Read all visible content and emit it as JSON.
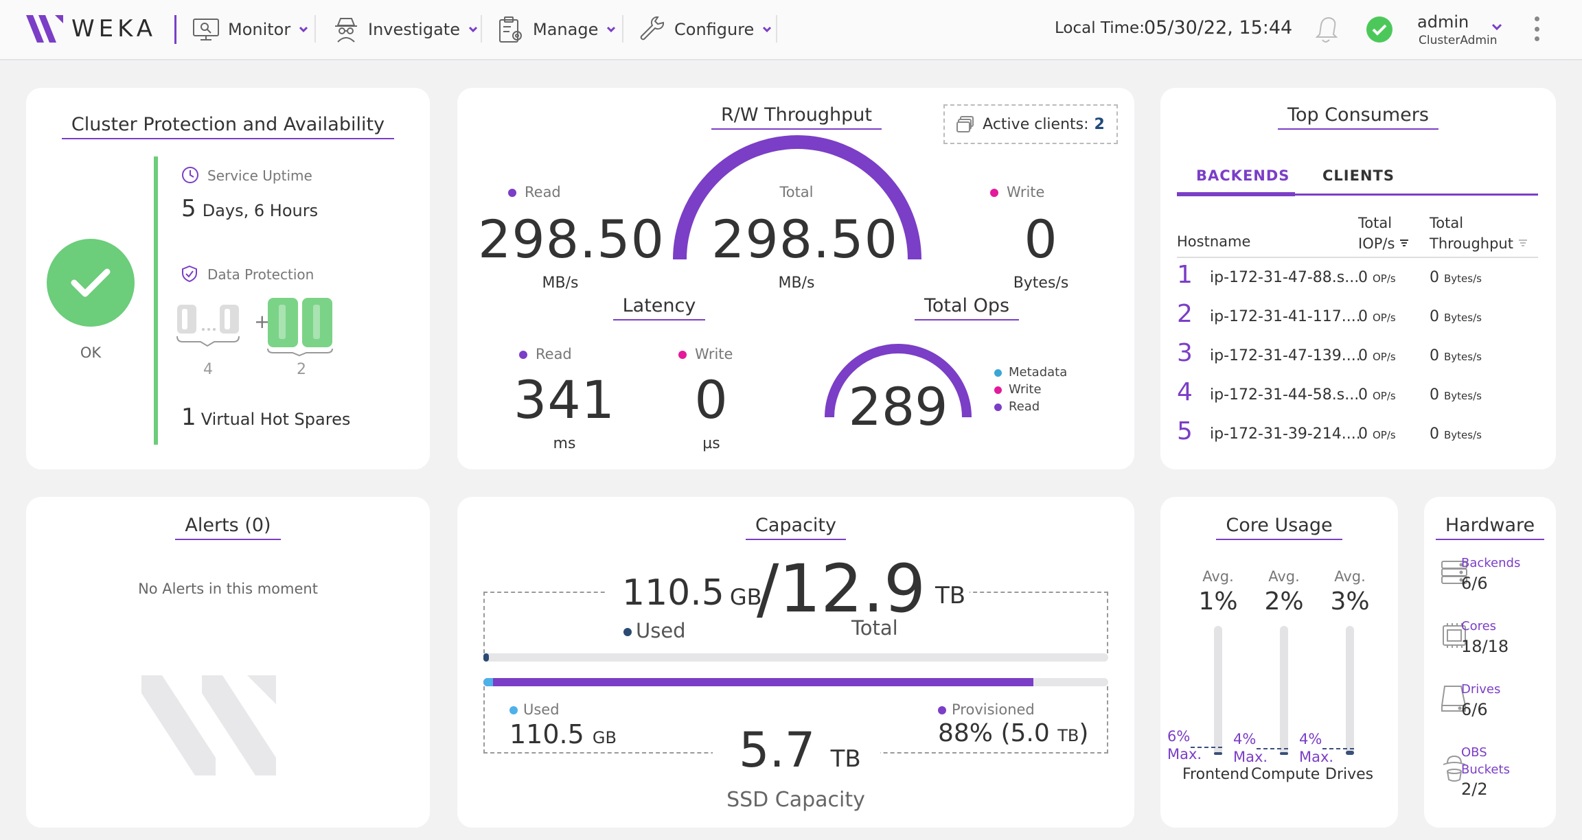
{
  "app": {
    "brand": "WEKA"
  },
  "nav": {
    "items": [
      {
        "label": "Monitor"
      },
      {
        "label": "Investigate"
      },
      {
        "label": "Manage"
      },
      {
        "label": "Configure"
      }
    ]
  },
  "header": {
    "local_time_label": "Local Time:",
    "local_time_value": "05/30/22, 15:44",
    "status": "ok",
    "user_name": "admin",
    "user_role": "ClusterAdmin"
  },
  "protection": {
    "title": "Cluster Protection and Availability",
    "status_label": "OK",
    "uptime_label": "Service Uptime",
    "uptime_num": "5",
    "uptime_text": "Days, 6 Hours",
    "data_protection_label": "Data Protection",
    "stripe_data": "4",
    "stripe_parity": "2",
    "hot_spares_num": "1",
    "hot_spares_text": "Virtual Hot Spares"
  },
  "throughput": {
    "title": "R/W Throughput",
    "active_clients_label": "Active clients:",
    "active_clients_value": "2",
    "read_label": "Read",
    "read_value": "298.50",
    "read_unit": "MB/s",
    "total_label": "Total",
    "total_value": "298.50",
    "total_unit": "MB/s",
    "write_label": "Write",
    "write_value": "0",
    "write_unit": "Bytes/s"
  },
  "latency": {
    "title": "Latency",
    "read_label": "Read",
    "read_value": "341",
    "read_unit": "ms",
    "write_label": "Write",
    "write_value": "0",
    "write_unit": "µs"
  },
  "total_ops": {
    "title": "Total Ops",
    "value": "289",
    "legend": [
      "Metadata",
      "Write",
      "Read"
    ]
  },
  "consumers": {
    "title": "Top Consumers",
    "tabs": [
      "BACKENDS",
      "CLIENTS"
    ],
    "columns": {
      "hostname": "Hostname",
      "iops_1": "Total",
      "iops_2": "IOP/s",
      "tp_1": "Total",
      "tp_2": "Throughput"
    },
    "rows": [
      {
        "rank": "1",
        "host": "ip-172-31-47-88.s...",
        "iops": "0",
        "iops_unit": "OP/s",
        "tp": "0",
        "tp_unit": "Bytes/s"
      },
      {
        "rank": "2",
        "host": "ip-172-31-41-117....",
        "iops": "0",
        "iops_unit": "OP/s",
        "tp": "0",
        "tp_unit": "Bytes/s"
      },
      {
        "rank": "3",
        "host": "ip-172-31-47-139....",
        "iops": "0",
        "iops_unit": "OP/s",
        "tp": "0",
        "tp_unit": "Bytes/s"
      },
      {
        "rank": "4",
        "host": "ip-172-31-44-58.s...",
        "iops": "0",
        "iops_unit": "OP/s",
        "tp": "0",
        "tp_unit": "Bytes/s"
      },
      {
        "rank": "5",
        "host": "ip-172-31-39-214....",
        "iops": "0",
        "iops_unit": "OP/s",
        "tp": "0",
        "tp_unit": "Bytes/s"
      }
    ]
  },
  "alerts": {
    "title": "Alerts (0)",
    "empty_text": "No Alerts in this moment"
  },
  "capacity": {
    "title": "Capacity",
    "used_value": "110.5",
    "used_unit": "GB",
    "used_label": "Used",
    "total_value": "12.9",
    "total_unit": "TB",
    "total_label": "Total",
    "ssd_used_label": "Used",
    "ssd_used_value": "110.5",
    "ssd_used_unit": "GB",
    "provisioned_label": "Provisioned",
    "provisioned_value": "88% (5.0",
    "provisioned_unit": "TB",
    "provisioned_close": ")",
    "ssd_value": "5.7",
    "ssd_unit": "TB",
    "ssd_label": "SSD Capacity",
    "provisioned_fraction": 0.88
  },
  "core_usage": {
    "title": "Core Usage",
    "avg_label": "Avg.",
    "max_label": "Max.",
    "columns": [
      {
        "name": "Frontend",
        "avg": "1%",
        "max": "6%",
        "avg_frac": 0.01,
        "max_frac": 0.06
      },
      {
        "name": "Compute",
        "avg": "2%",
        "max": "4%",
        "avg_frac": 0.02,
        "max_frac": 0.04
      },
      {
        "name": "Drives",
        "avg": "3%",
        "max": "4%",
        "avg_frac": 0.03,
        "max_frac": 0.04
      }
    ]
  },
  "hardware": {
    "title": "Hardware",
    "items": [
      {
        "label": "Backends",
        "value": "6/6",
        "icon": "server-icon"
      },
      {
        "label": "Cores",
        "value": "18/18",
        "icon": "cpu-icon"
      },
      {
        "label": "Drives",
        "value": "6/6",
        "icon": "drive-icon"
      },
      {
        "label_1": "OBS",
        "label_2": "Buckets",
        "value": "2/2",
        "icon": "bucket-icon"
      }
    ]
  },
  "colors": {
    "accent": "#7b3ec6",
    "read": "#7b3ec6",
    "write": "#e4199b",
    "metadata": "#3aa6d6",
    "ok": "#6ccd7a"
  }
}
